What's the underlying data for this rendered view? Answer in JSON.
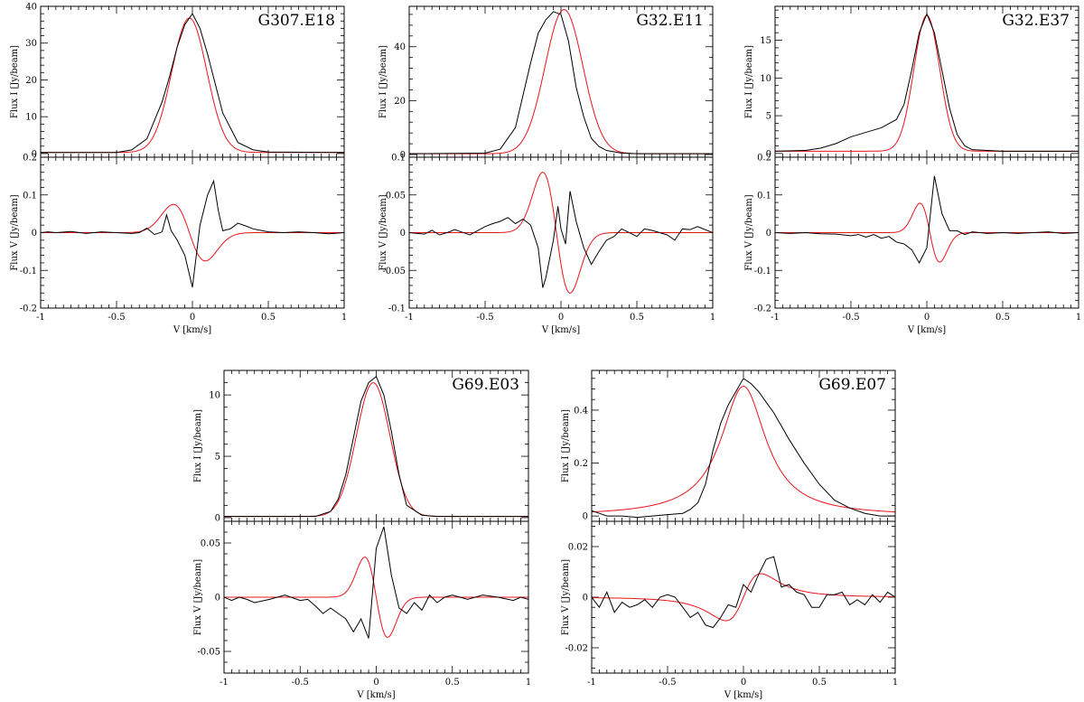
{
  "colors": {
    "observed": "#000000",
    "model": "#e8141b"
  },
  "chart_data": [
    {
      "type": "line",
      "name": "G307.E18",
      "xlabel": "V [km/s]",
      "xlim": [
        -1,
        1
      ],
      "xticks": [
        "-1",
        "-0.5",
        "0",
        "0.5",
        "1"
      ],
      "top": {
        "ylabel": "Flux I [Jy/beam]",
        "ylim": [
          -1,
          40
        ],
        "yticks": [
          "0",
          "10",
          "20",
          "30",
          "40"
        ],
        "observed": {
          "x": [
            -1,
            -0.5,
            -0.4,
            -0.3,
            -0.2,
            -0.15,
            -0.1,
            -0.05,
            0,
            0.05,
            0.1,
            0.15,
            0.2,
            0.3,
            0.4,
            0.5,
            1
          ],
          "y": [
            0.3,
            0.3,
            1,
            4,
            14,
            21,
            29,
            35,
            38,
            34,
            27,
            19,
            11,
            3,
            1,
            0.4,
            0.3
          ]
        },
        "model": {
          "kind": "gauss",
          "amp": 36.5,
          "mu": -0.02,
          "sigma": 0.115,
          "base": 0.3
        }
      },
      "bottom": {
        "ylabel": "Flux V [Jy/beam]",
        "ylim": [
          -0.2,
          0.2
        ],
        "yticks": [
          "-0.2",
          "-0.1",
          "0",
          "0.1",
          "0.2"
        ],
        "observed": {
          "x": [
            -1,
            -0.95,
            -0.9,
            -0.8,
            -0.7,
            -0.6,
            -0.5,
            -0.4,
            -0.35,
            -0.3,
            -0.25,
            -0.2,
            -0.17,
            -0.14,
            -0.1,
            -0.05,
            0,
            0.05,
            0.1,
            0.14,
            0.17,
            0.2,
            0.25,
            0.3,
            0.35,
            0.4,
            0.5,
            0.6,
            0.7,
            0.8,
            0.9,
            1
          ],
          "y": [
            0,
            0.002,
            0,
            0.003,
            -0.002,
            0.002,
            0,
            -0.002,
            0,
            0.012,
            -0.005,
            0.002,
            0.047,
            0.005,
            -0.02,
            -0.06,
            -0.145,
            0.02,
            0.1,
            0.137,
            0.06,
            0.005,
            0.01,
            0.025,
            0.018,
            0.01,
            0.002,
            0,
            0.002,
            0,
            -0.003,
            0
          ]
        },
        "model": {
          "kind": "dgauss",
          "amp": -0.075,
          "mu": -0.02,
          "sigma": 0.105,
          "scale": 1
        }
      }
    },
    {
      "type": "line",
      "name": "G32.E11",
      "xlabel": "V [km/s]",
      "xlim": [
        -1,
        1
      ],
      "xticks": [
        "-1",
        "-0.5",
        "0",
        "0.5",
        "1"
      ],
      "top": {
        "ylabel": "Flux I [Jy/beam]",
        "ylim": [
          -1,
          55
        ],
        "yticks": [
          "0",
          "20",
          "40"
        ],
        "observed": {
          "x": [
            -1,
            -0.5,
            -0.4,
            -0.3,
            -0.25,
            -0.2,
            -0.15,
            -0.1,
            -0.05,
            0,
            0.05,
            0.1,
            0.15,
            0.2,
            0.25,
            0.3,
            0.4,
            0.5,
            1
          ],
          "y": [
            0.3,
            0.5,
            2,
            10,
            22,
            34,
            45,
            50,
            53,
            52,
            42,
            25,
            14,
            6,
            3,
            1.5,
            0.5,
            0.3,
            0.3
          ]
        },
        "model": {
          "kind": "gauss",
          "amp": 53.5,
          "mu": 0.02,
          "sigma": 0.125,
          "base": 0.3
        }
      },
      "bottom": {
        "ylabel": "Flux V [Jy/beam]",
        "ylim": [
          -0.1,
          0.1
        ],
        "yticks": [
          "-0.1",
          "-0.05",
          "0",
          "0.05",
          "0.1"
        ],
        "observed": {
          "x": [
            -1,
            -0.9,
            -0.85,
            -0.8,
            -0.75,
            -0.7,
            -0.6,
            -0.5,
            -0.45,
            -0.4,
            -0.35,
            -0.3,
            -0.25,
            -0.2,
            -0.15,
            -0.12,
            -0.1,
            -0.05,
            -0.02,
            0,
            0.03,
            0.06,
            0.1,
            0.15,
            0.2,
            0.25,
            0.3,
            0.35,
            0.4,
            0.5,
            0.55,
            0.6,
            0.7,
            0.75,
            0.8,
            0.85,
            0.9,
            1
          ],
          "y": [
            0,
            -0.002,
            0.003,
            -0.003,
            0,
            0.004,
            -0.003,
            0.008,
            0.012,
            0.015,
            0.02,
            0.012,
            0.018,
            0.01,
            -0.02,
            -0.073,
            -0.06,
            -0.01,
            0.035,
            0.005,
            -0.015,
            0.055,
            0.015,
            -0.02,
            -0.042,
            -0.025,
            -0.01,
            -0.005,
            0.005,
            -0.005,
            0.005,
            0.003,
            -0.003,
            -0.01,
            0.005,
            0.004,
            0.008,
            0
          ]
        },
        "model": {
          "kind": "dgauss",
          "amp": -0.08,
          "mu": -0.03,
          "sigma": 0.09,
          "scale": 1
        }
      }
    },
    {
      "type": "line",
      "name": "G32.E37",
      "xlabel": "V [km/s]",
      "xlim": [
        -1,
        1
      ],
      "xticks": [
        "-1",
        "-0.5",
        "0",
        "0.5",
        "1"
      ],
      "top": {
        "ylabel": "Flux I [Jy/beam]",
        "ylim": [
          -0.5,
          19.5
        ],
        "yticks": [
          "0",
          "5",
          "10",
          "15"
        ],
        "observed": {
          "x": [
            -1,
            -0.8,
            -0.7,
            -0.6,
            -0.5,
            -0.4,
            -0.3,
            -0.2,
            -0.15,
            -0.1,
            -0.05,
            0,
            0.05,
            0.1,
            0.15,
            0.2,
            0.25,
            0.3,
            0.5,
            1
          ],
          "y": [
            0.3,
            0.4,
            0.7,
            1.3,
            2.2,
            2.8,
            3.4,
            4.5,
            6.5,
            11,
            16,
            18.5,
            16,
            11,
            6,
            2.5,
            1,
            0.5,
            0.3,
            0.3
          ]
        },
        "model": {
          "kind": "gauss",
          "amp": 18,
          "mu": 0.0,
          "sigma": 0.085,
          "base": 0.3
        }
      },
      "bottom": {
        "ylabel": "Flux V [Jy/beam]",
        "ylim": [
          -0.2,
          0.2
        ],
        "yticks": [
          "-0.2",
          "-0.1",
          "0",
          "0.1",
          "0.2"
        ],
        "observed": {
          "x": [
            -1,
            -0.9,
            -0.8,
            -0.7,
            -0.6,
            -0.5,
            -0.45,
            -0.4,
            -0.35,
            -0.3,
            -0.25,
            -0.2,
            -0.15,
            -0.1,
            -0.05,
            0,
            0.05,
            0.1,
            0.15,
            0.2,
            0.25,
            0.3,
            0.4,
            0.5,
            0.6,
            0.7,
            0.8,
            0.9,
            1
          ],
          "y": [
            0,
            -0.002,
            0,
            -0.003,
            -0.004,
            -0.008,
            -0.005,
            -0.012,
            -0.005,
            -0.015,
            -0.01,
            -0.025,
            -0.03,
            -0.045,
            -0.08,
            -0.04,
            0.15,
            0.05,
            0.005,
            0.005,
            -0.005,
            0.002,
            -0.002,
            0,
            -0.002,
            0,
            0.002,
            -0.002,
            0
          ]
        },
        "model": {
          "kind": "dgauss",
          "amp": -0.078,
          "mu": 0.02,
          "sigma": 0.065,
          "scale": 1
        }
      }
    },
    {
      "type": "line",
      "name": "G69.E03",
      "xlabel": "V [km/s]",
      "xlim": [
        -1,
        1
      ],
      "xticks": [
        "-1",
        "-0.5",
        "0",
        "0.5",
        "1"
      ],
      "top": {
        "ylabel": "Flux I [Jy/beam]",
        "ylim": [
          -0.3,
          12
        ],
        "yticks": [
          "0",
          "5",
          "10"
        ],
        "observed": {
          "x": [
            -1,
            -0.4,
            -0.3,
            -0.25,
            -0.2,
            -0.15,
            -0.1,
            -0.05,
            0,
            0.05,
            0.1,
            0.15,
            0.2,
            0.3,
            0.4,
            1
          ],
          "y": [
            0.1,
            0.1,
            0.5,
            1.5,
            3.5,
            6.5,
            9.5,
            11,
            11.5,
            10,
            7,
            3.5,
            1,
            0.2,
            0.1,
            0.1
          ]
        },
        "model": {
          "kind": "gauss",
          "amp": 10.9,
          "mu": -0.02,
          "sigma": 0.11,
          "base": 0.1
        }
      },
      "bottom": {
        "ylabel": "Flux V [Jy/beam]",
        "ylim": [
          -0.07,
          0.07
        ],
        "yticks": [
          "-0.05",
          "0",
          "0.05"
        ],
        "observed": {
          "x": [
            -1,
            -0.95,
            -0.9,
            -0.85,
            -0.8,
            -0.7,
            -0.6,
            -0.5,
            -0.45,
            -0.4,
            -0.35,
            -0.3,
            -0.25,
            -0.2,
            -0.15,
            -0.1,
            -0.05,
            0,
            0.05,
            0.1,
            0.15,
            0.2,
            0.25,
            0.3,
            0.35,
            0.4,
            0.45,
            0.5,
            0.55,
            0.6,
            0.7,
            0.8,
            0.9,
            0.95,
            1
          ],
          "y": [
            0,
            -0.003,
            0,
            -0.002,
            -0.005,
            -0.002,
            0.002,
            -0.003,
            -0.002,
            -0.008,
            -0.015,
            -0.01,
            -0.015,
            -0.02,
            -0.032,
            -0.02,
            -0.038,
            0.045,
            0.065,
            0.02,
            -0.01,
            -0.015,
            -0.005,
            -0.012,
            0.002,
            -0.005,
            0,
            0.002,
            0,
            -0.002,
            0.002,
            0,
            -0.003,
            0,
            -0.002
          ]
        },
        "model": {
          "kind": "dgauss",
          "amp": -0.037,
          "mu": 0.0,
          "sigma": 0.075,
          "scale": 1
        }
      }
    },
    {
      "type": "line",
      "name": "G69.E07",
      "xlabel": "V [km/s]",
      "xlim": [
        -1,
        1
      ],
      "xticks": [
        "-1",
        "-0.5",
        "0",
        "0.5",
        "1"
      ],
      "top": {
        "ylabel": "Flux I [Jy/beam]",
        "ylim": [
          -0.02,
          0.55
        ],
        "yticks": [
          "0",
          "0.2",
          "0.4"
        ],
        "observed": {
          "x": [
            -1,
            -0.95,
            -0.9,
            -0.8,
            -0.7,
            -0.6,
            -0.5,
            -0.4,
            -0.35,
            -0.3,
            -0.25,
            -0.2,
            -0.15,
            -0.1,
            -0.05,
            0,
            0.05,
            0.1,
            0.15,
            0.2,
            0.25,
            0.3,
            0.4,
            0.5,
            0.6,
            0.7,
            0.8,
            0.9,
            1
          ],
          "y": [
            0.02,
            0.01,
            0.0,
            0.0,
            -0.005,
            0.0,
            0.005,
            0.01,
            0.025,
            0.05,
            0.12,
            0.25,
            0.35,
            0.42,
            0.47,
            0.52,
            0.5,
            0.47,
            0.43,
            0.39,
            0.34,
            0.29,
            0.2,
            0.12,
            0.06,
            0.03,
            0.01,
            0.0,
            0.0
          ]
        },
        "model": {
          "kind": "lorentz",
          "amp": 0.49,
          "mu": 0.0,
          "gamma": 0.18,
          "base": 0.0
        }
      },
      "bottom": {
        "ylabel": "Flux V [Jy/beam]",
        "ylim": [
          -0.03,
          0.03
        ],
        "yticks": [
          "-0.02",
          "0",
          "0.02"
        ],
        "observed": {
          "x": [
            -1,
            -0.95,
            -0.9,
            -0.85,
            -0.8,
            -0.75,
            -0.7,
            -0.65,
            -0.6,
            -0.55,
            -0.5,
            -0.45,
            -0.4,
            -0.35,
            -0.3,
            -0.25,
            -0.2,
            -0.15,
            -0.1,
            -0.05,
            0,
            0.05,
            0.1,
            0.15,
            0.2,
            0.25,
            0.3,
            0.35,
            0.4,
            0.45,
            0.5,
            0.55,
            0.6,
            0.65,
            0.7,
            0.75,
            0.8,
            0.85,
            0.9,
            0.95,
            1
          ],
          "y": [
            0,
            -0.004,
            0.002,
            -0.006,
            -0.002,
            -0.004,
            -0.003,
            -0.001,
            -0.004,
            0.0,
            0.001,
            0.0,
            -0.004,
            -0.008,
            -0.006,
            -0.011,
            -0.012,
            -0.008,
            -0.003,
            -0.004,
            0.005,
            0.002,
            0.009,
            0.015,
            0.016,
            0.004,
            0.005,
            0.002,
            0.001,
            -0.004,
            -0.004,
            0.001,
            0.001,
            0.002,
            -0.003,
            -0.001,
            -0.003,
            0.001,
            -0.002,
            0.002,
            0
          ]
        },
        "model": {
          "kind": "lorentzderiv",
          "amp": 0.011,
          "mu": 0.0,
          "gamma": 0.2
        }
      }
    }
  ]
}
